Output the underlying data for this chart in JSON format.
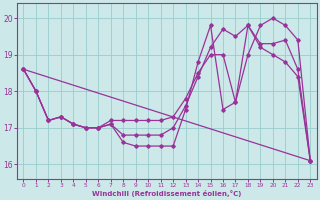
{
  "xlabel": "Windchill (Refroidissement éolien,°C)",
  "bg_color": "#cce8e8",
  "line_color": "#993399",
  "grid_color": "#99cccc",
  "xmin": -0.5,
  "xmax": 23.5,
  "ymin": 15.6,
  "ymax": 20.4,
  "yticks": [
    16,
    17,
    18,
    19,
    20
  ],
  "xticks": [
    0,
    1,
    2,
    3,
    4,
    5,
    6,
    7,
    8,
    9,
    10,
    11,
    12,
    13,
    14,
    15,
    16,
    17,
    18,
    19,
    20,
    21,
    22,
    23
  ],
  "series": [
    {
      "x": [
        0,
        1,
        2,
        3,
        4,
        5,
        6,
        7,
        8,
        9,
        10,
        11,
        12,
        13,
        14,
        15,
        16,
        17,
        18,
        19,
        20,
        21,
        22,
        23
      ],
      "y": [
        18.6,
        18.0,
        17.2,
        17.3,
        17.1,
        17.0,
        17.0,
        17.1,
        16.6,
        16.5,
        16.5,
        16.5,
        16.5,
        17.5,
        18.8,
        19.8,
        17.5,
        17.7,
        19.8,
        19.3,
        19.3,
        19.4,
        18.6,
        16.1
      ]
    },
    {
      "x": [
        0,
        1,
        2,
        3,
        4,
        5,
        6,
        7,
        8,
        9,
        10,
        11,
        12,
        13,
        14,
        15,
        16,
        17,
        18,
        19,
        20,
        21,
        22,
        23
      ],
      "y": [
        18.6,
        18.0,
        17.2,
        17.3,
        17.1,
        17.0,
        17.0,
        17.1,
        16.8,
        16.8,
        16.8,
        16.8,
        17.0,
        17.6,
        18.4,
        19.2,
        19.7,
        19.5,
        19.8,
        19.2,
        19.0,
        18.8,
        18.4,
        16.1
      ]
    },
    {
      "x": [
        0,
        23
      ],
      "y": [
        18.6,
        16.1
      ]
    },
    {
      "x": [
        0,
        1,
        2,
        3,
        4,
        5,
        6,
        7,
        8,
        9,
        10,
        11,
        12,
        13,
        14,
        15,
        16,
        17,
        18,
        19,
        20,
        21,
        22,
        23
      ],
      "y": [
        18.6,
        18.0,
        17.2,
        17.3,
        17.1,
        17.0,
        17.0,
        17.2,
        17.2,
        17.2,
        17.2,
        17.2,
        17.3,
        17.8,
        18.5,
        19.0,
        19.0,
        17.7,
        19.0,
        19.8,
        20.0,
        19.8,
        19.4,
        16.1
      ]
    }
  ]
}
